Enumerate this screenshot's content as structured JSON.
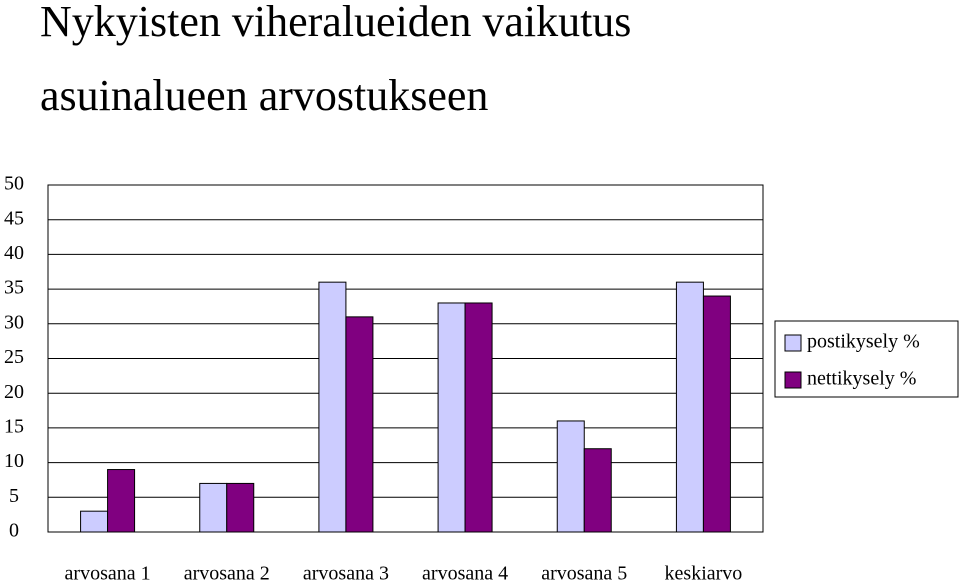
{
  "chart_data": {
    "type": "bar",
    "title": [
      "Nykyisten viheralueiden vaikutus",
      "asuinalueen arvostukseen"
    ],
    "categories": [
      "arvosana 1",
      "arvosana 2",
      "arvosana 3",
      "arvosana 4",
      "arvosana 5",
      "keskiarvo"
    ],
    "series": [
      {
        "name": "postikysely %",
        "color": "#ccccff",
        "values": [
          3,
          7,
          36,
          33,
          16,
          36
        ]
      },
      {
        "name": "nettikysely %",
        "color": "#800080",
        "values": [
          9,
          7,
          31,
          33,
          12,
          34
        ]
      }
    ],
    "ylim": [
      0,
      50
    ],
    "yticks": [
      0,
      5,
      10,
      15,
      20,
      25,
      30,
      35,
      40,
      45,
      50
    ],
    "grid": true,
    "legend": "right"
  }
}
